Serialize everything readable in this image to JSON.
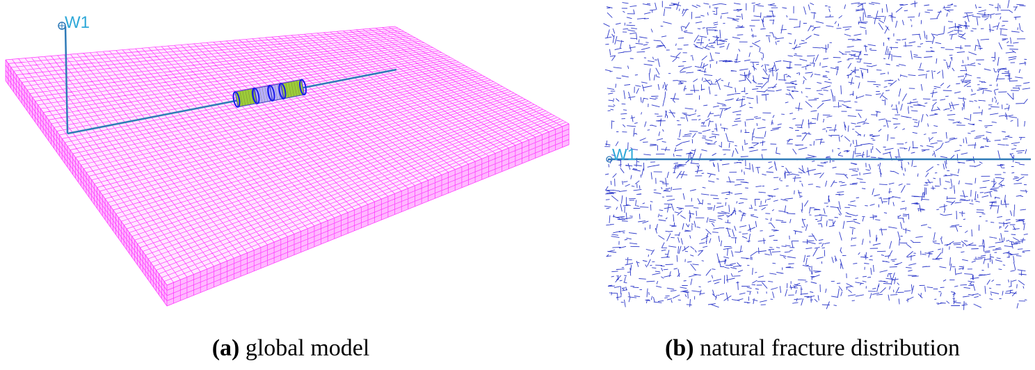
{
  "panel_a": {
    "well_label": "W1",
    "caption_tag": "(a)",
    "caption_text": " global model"
  },
  "panel_b": {
    "well_label": "W1",
    "caption_tag": "(b)",
    "caption_text": " natural fracture distribution"
  },
  "colors": {
    "grid": "#ff33ff",
    "well": "#2e7ab8",
    "well_label": "#2ea8d8",
    "fracture": "#2a36c8",
    "segment_green": "#9ccc3a",
    "segment_violet": "#b8b0ff"
  },
  "icons": {
    "well_marker": "well-head-marker-icon"
  }
}
